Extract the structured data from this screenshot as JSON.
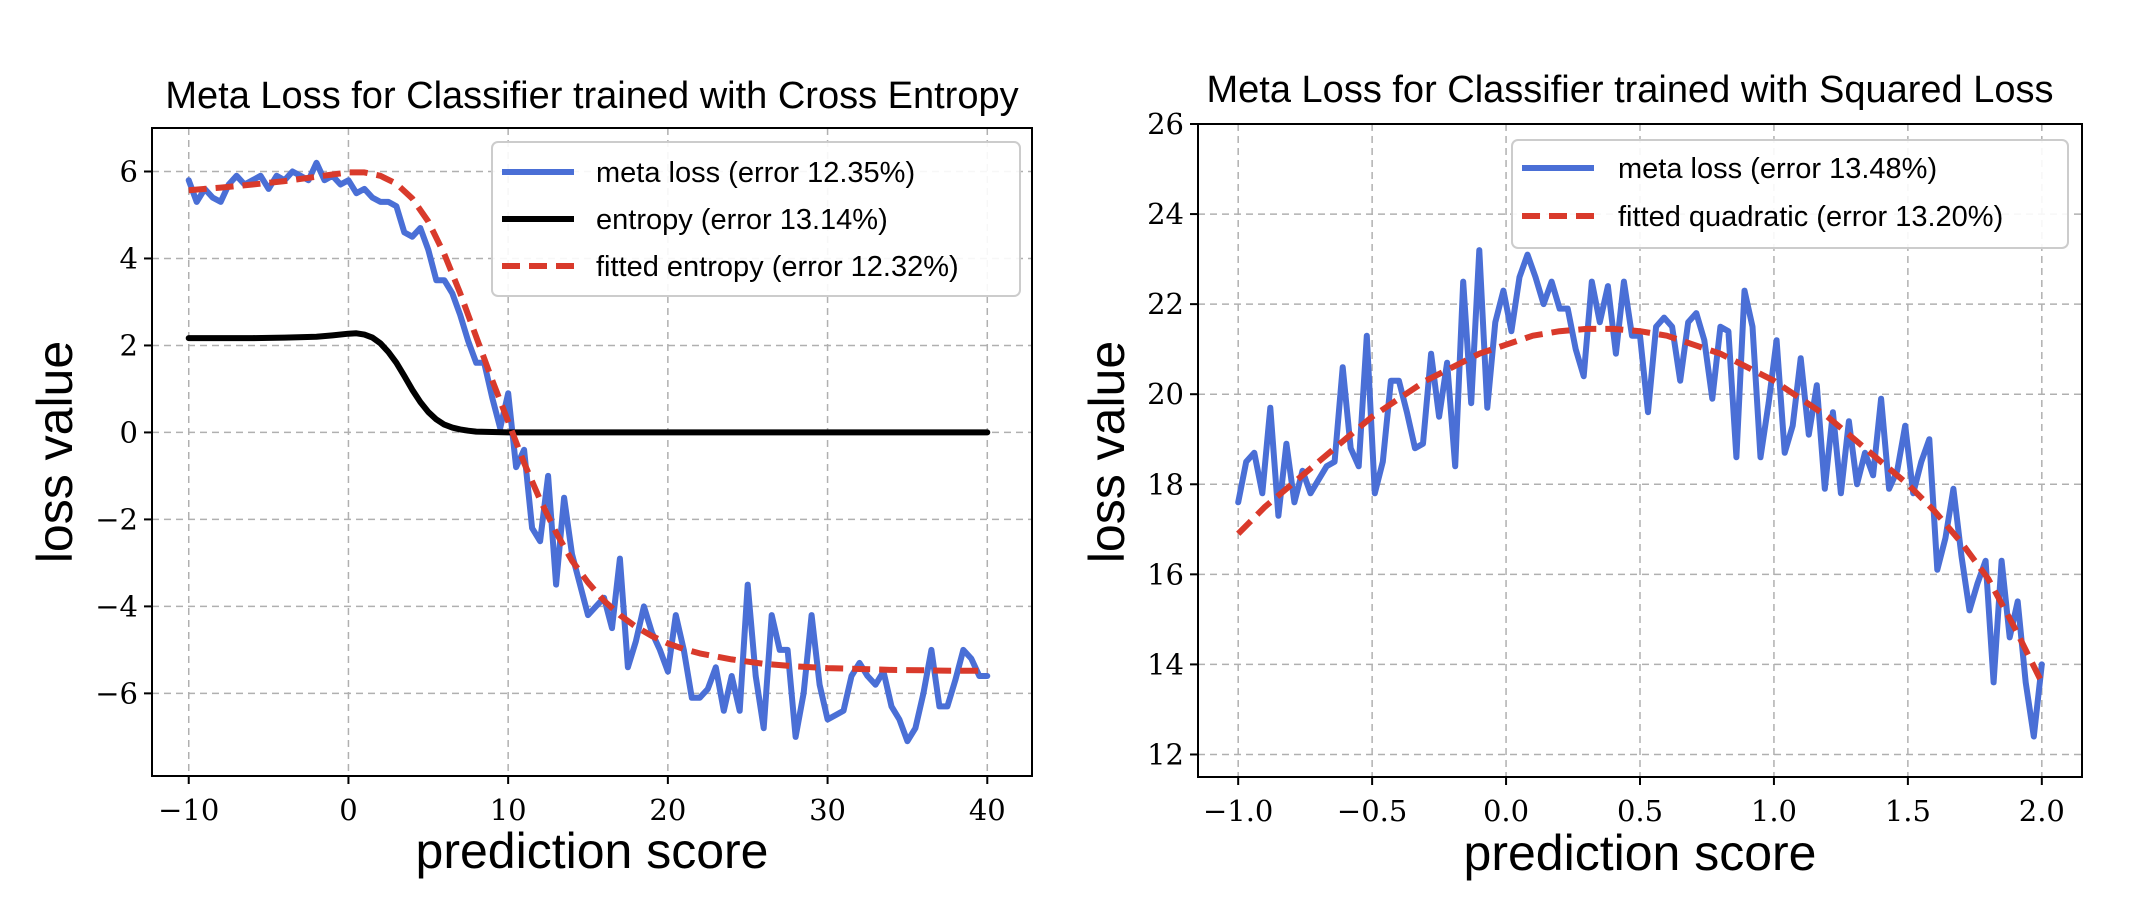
{
  "chart_data": [
    {
      "type": "line",
      "title": "Meta Loss for Classifier trained with Cross Entropy",
      "xlabel": "prediction score",
      "ylabel": "loss value",
      "xlim": [
        -12.3,
        42.8
      ],
      "ylim": [
        -7.9,
        7.0
      ],
      "xticks": [
        -10,
        0,
        10,
        20,
        30,
        40
      ],
      "xtick_labels": [
        "−10",
        "0",
        "10",
        "20",
        "30",
        "40"
      ],
      "yticks": [
        -6,
        -4,
        -2,
        0,
        2,
        4,
        6
      ],
      "ytick_labels": [
        "−6",
        "−4",
        "−2",
        "0",
        "2",
        "4",
        "6"
      ],
      "grid": true,
      "legend_position": "upper-right",
      "series": [
        {
          "name": "meta loss (error 12.35%)",
          "color": "#4a6fd6",
          "style": "solid",
          "x": [
            -10,
            -9.5,
            -9,
            -8.5,
            -8,
            -7.5,
            -7,
            -6.5,
            -6,
            -5.5,
            -5,
            -4.5,
            -4,
            -3.5,
            -3,
            -2.5,
            -2,
            -1.5,
            -1,
            -0.5,
            0,
            0.5,
            1,
            1.5,
            2,
            2.5,
            3,
            3.5,
            4,
            4.5,
            5,
            5.5,
            6,
            6.5,
            7,
            7.5,
            8,
            8.5,
            9,
            9.5,
            10,
            10.5,
            11,
            11.5,
            12,
            12.5,
            13,
            13.5,
            14,
            14.5,
            15,
            15.5,
            16,
            16.5,
            17,
            17.5,
            18,
            18.5,
            19,
            19.5,
            20,
            20.5,
            21,
            21.5,
            22,
            22.5,
            23,
            23.5,
            24,
            24.5,
            25,
            25.5,
            26,
            26.5,
            27,
            27.5,
            28,
            28.5,
            29,
            29.5,
            30,
            30.5,
            31,
            31.5,
            32,
            32.5,
            33,
            33.5,
            34,
            34.5,
            35,
            35.5,
            36,
            36.5,
            37,
            37.5,
            38,
            38.5,
            39,
            39.5,
            40
          ],
          "values": [
            5.8,
            5.3,
            5.6,
            5.4,
            5.3,
            5.7,
            5.9,
            5.7,
            5.8,
            5.9,
            5.6,
            5.9,
            5.8,
            6.0,
            5.9,
            5.8,
            6.2,
            5.8,
            5.9,
            5.7,
            5.8,
            5.5,
            5.6,
            5.4,
            5.3,
            5.3,
            5.2,
            4.6,
            4.5,
            4.7,
            4.2,
            3.5,
            3.5,
            3.2,
            2.7,
            2.1,
            1.6,
            1.6,
            0.8,
            0.1,
            0.9,
            -0.8,
            -0.4,
            -2.2,
            -2.5,
            -1.0,
            -3.5,
            -1.5,
            -2.8,
            -3.5,
            -4.2,
            -4.0,
            -3.8,
            -4.5,
            -2.9,
            -5.4,
            -4.8,
            -4.0,
            -4.6,
            -5.0,
            -5.5,
            -4.2,
            -5.0,
            -6.1,
            -6.1,
            -5.9,
            -5.4,
            -6.4,
            -5.6,
            -6.4,
            -3.5,
            -5.6,
            -6.8,
            -4.2,
            -5.0,
            -5.0,
            -7.0,
            -6.0,
            -4.2,
            -5.8,
            -6.6,
            -6.5,
            -6.4,
            -5.6,
            -5.3,
            -5.6,
            -5.8,
            -5.5,
            -6.3,
            -6.6,
            -7.1,
            -6.8,
            -6.0,
            -5.0,
            -6.3,
            -6.3,
            -5.7,
            -5.0,
            -5.2,
            -5.6,
            -5.6
          ]
        },
        {
          "name": "entropy (error 13.14%)",
          "color": "#000000",
          "style": "solid",
          "x": [
            -10,
            -8,
            -6,
            -4,
            -2,
            -1,
            0,
            0.5,
            1,
            1.5,
            2,
            2.5,
            3,
            3.5,
            4,
            4.5,
            5,
            5.5,
            6,
            6.5,
            7,
            7.5,
            8,
            9,
            10,
            12,
            15,
            20,
            25,
            30,
            35,
            40
          ],
          "values": [
            2.17,
            2.17,
            2.17,
            2.18,
            2.2,
            2.23,
            2.27,
            2.28,
            2.25,
            2.18,
            2.05,
            1.85,
            1.6,
            1.3,
            0.98,
            0.7,
            0.47,
            0.3,
            0.18,
            0.11,
            0.07,
            0.04,
            0.02,
            0.01,
            0.0,
            0.0,
            0.0,
            0.0,
            0.0,
            0.0,
            0.0,
            0.0
          ]
        },
        {
          "name": "fitted entropy (error 12.32%)",
          "color": "#d93a2b",
          "style": "dashed",
          "x": [
            -10,
            -8,
            -6,
            -4,
            -2,
            -1,
            0,
            1,
            2,
            3,
            4,
            5,
            6,
            7,
            8,
            9,
            10,
            11,
            12,
            13,
            14,
            15,
            16,
            17,
            18,
            19,
            20,
            21,
            22,
            24,
            26,
            28,
            30,
            32,
            34,
            36,
            38,
            40
          ],
          "values": [
            5.57,
            5.63,
            5.7,
            5.78,
            5.88,
            5.93,
            5.98,
            5.98,
            5.9,
            5.72,
            5.38,
            4.85,
            4.1,
            3.2,
            2.2,
            1.2,
            0.25,
            -0.7,
            -1.55,
            -2.3,
            -2.95,
            -3.45,
            -3.87,
            -4.2,
            -4.47,
            -4.68,
            -4.85,
            -4.98,
            -5.08,
            -5.22,
            -5.32,
            -5.38,
            -5.42,
            -5.44,
            -5.46,
            -5.47,
            -5.48,
            -5.48
          ]
        }
      ]
    },
    {
      "type": "line",
      "title": "Meta Loss for Classifier trained with Squared Loss",
      "xlabel": "prediction score",
      "ylabel": "loss value",
      "xlim": [
        -1.15,
        2.15
      ],
      "ylim": [
        11.5,
        26.0
      ],
      "xticks": [
        -1.0,
        -0.5,
        0.0,
        0.5,
        1.0,
        1.5,
        2.0
      ],
      "xtick_labels": [
        "−1.0",
        "−0.5",
        "0.0",
        "0.5",
        "1.0",
        "1.5",
        "2.0"
      ],
      "yticks": [
        12,
        14,
        16,
        18,
        20,
        22,
        24,
        26
      ],
      "ytick_labels": [
        "12",
        "14",
        "16",
        "18",
        "20",
        "22",
        "24",
        "26"
      ],
      "grid": true,
      "legend_position": "upper-right",
      "series": [
        {
          "name": "meta loss (error 13.48%)",
          "color": "#4a6fd6",
          "style": "solid",
          "x": [
            -1.0,
            -0.97,
            -0.94,
            -0.91,
            -0.88,
            -0.85,
            -0.82,
            -0.79,
            -0.76,
            -0.73,
            -0.7,
            -0.67,
            -0.64,
            -0.61,
            -0.58,
            -0.55,
            -0.52,
            -0.49,
            -0.46,
            -0.43,
            -0.4,
            -0.37,
            -0.34,
            -0.31,
            -0.28,
            -0.25,
            -0.22,
            -0.19,
            -0.16,
            -0.13,
            -0.1,
            -0.07,
            -0.04,
            -0.01,
            0.02,
            0.05,
            0.08,
            0.11,
            0.14,
            0.17,
            0.2,
            0.23,
            0.26,
            0.29,
            0.32,
            0.35,
            0.38,
            0.41,
            0.44,
            0.47,
            0.5,
            0.53,
            0.56,
            0.59,
            0.62,
            0.65,
            0.68,
            0.71,
            0.74,
            0.77,
            0.8,
            0.83,
            0.86,
            0.89,
            0.92,
            0.95,
            0.98,
            1.01,
            1.04,
            1.07,
            1.1,
            1.13,
            1.16,
            1.19,
            1.22,
            1.25,
            1.28,
            1.31,
            1.34,
            1.37,
            1.4,
            1.43,
            1.46,
            1.49,
            1.52,
            1.55,
            1.58,
            1.61,
            1.64,
            1.67,
            1.7,
            1.73,
            1.76,
            1.79,
            1.82,
            1.85,
            1.88,
            1.91,
            1.94,
            1.97,
            2.0
          ],
          "values": [
            17.6,
            18.5,
            18.7,
            17.8,
            19.7,
            17.3,
            18.9,
            17.6,
            18.3,
            17.8,
            18.1,
            18.4,
            18.5,
            20.6,
            18.8,
            18.4,
            21.3,
            17.8,
            18.5,
            20.3,
            20.3,
            19.6,
            18.8,
            18.9,
            20.9,
            19.5,
            20.7,
            18.4,
            22.5,
            19.8,
            23.2,
            19.7,
            21.6,
            22.3,
            21.4,
            22.6,
            23.1,
            22.6,
            22.0,
            22.5,
            21.9,
            21.9,
            21.0,
            20.4,
            22.5,
            21.6,
            22.4,
            20.9,
            22.5,
            21.3,
            21.3,
            19.6,
            21.5,
            21.7,
            21.5,
            20.3,
            21.6,
            21.8,
            21.2,
            19.9,
            21.5,
            21.4,
            18.6,
            22.3,
            21.5,
            18.6,
            19.8,
            21.2,
            18.7,
            19.3,
            20.8,
            19.1,
            20.2,
            17.9,
            19.6,
            17.8,
            19.4,
            18.0,
            18.7,
            18.2,
            19.9,
            17.9,
            18.3,
            19.3,
            17.8,
            18.5,
            19.0,
            16.1,
            16.8,
            17.9,
            16.4,
            15.2,
            15.8,
            16.3,
            13.6,
            16.3,
            14.6,
            15.4,
            13.6,
            12.4,
            14.0
          ]
        },
        {
          "name": "fitted quadratic (error 13.20%)",
          "color": "#d93a2b",
          "style": "dashed",
          "x": [
            -1.0,
            -0.9,
            -0.8,
            -0.7,
            -0.6,
            -0.5,
            -0.4,
            -0.3,
            -0.2,
            -0.1,
            0.0,
            0.1,
            0.2,
            0.3,
            0.4,
            0.5,
            0.6,
            0.7,
            0.8,
            0.9,
            1.0,
            1.1,
            1.2,
            1.3,
            1.4,
            1.5,
            1.6,
            1.7,
            1.8,
            1.9,
            2.0
          ],
          "values": [
            16.9,
            17.5,
            18.0,
            18.5,
            19.0,
            19.5,
            19.9,
            20.3,
            20.6,
            20.9,
            21.1,
            21.3,
            21.4,
            21.45,
            21.45,
            21.4,
            21.3,
            21.1,
            20.9,
            20.6,
            20.3,
            19.9,
            19.5,
            19.0,
            18.5,
            18.0,
            17.4,
            16.7,
            15.9,
            14.8,
            13.6
          ]
        }
      ]
    }
  ]
}
